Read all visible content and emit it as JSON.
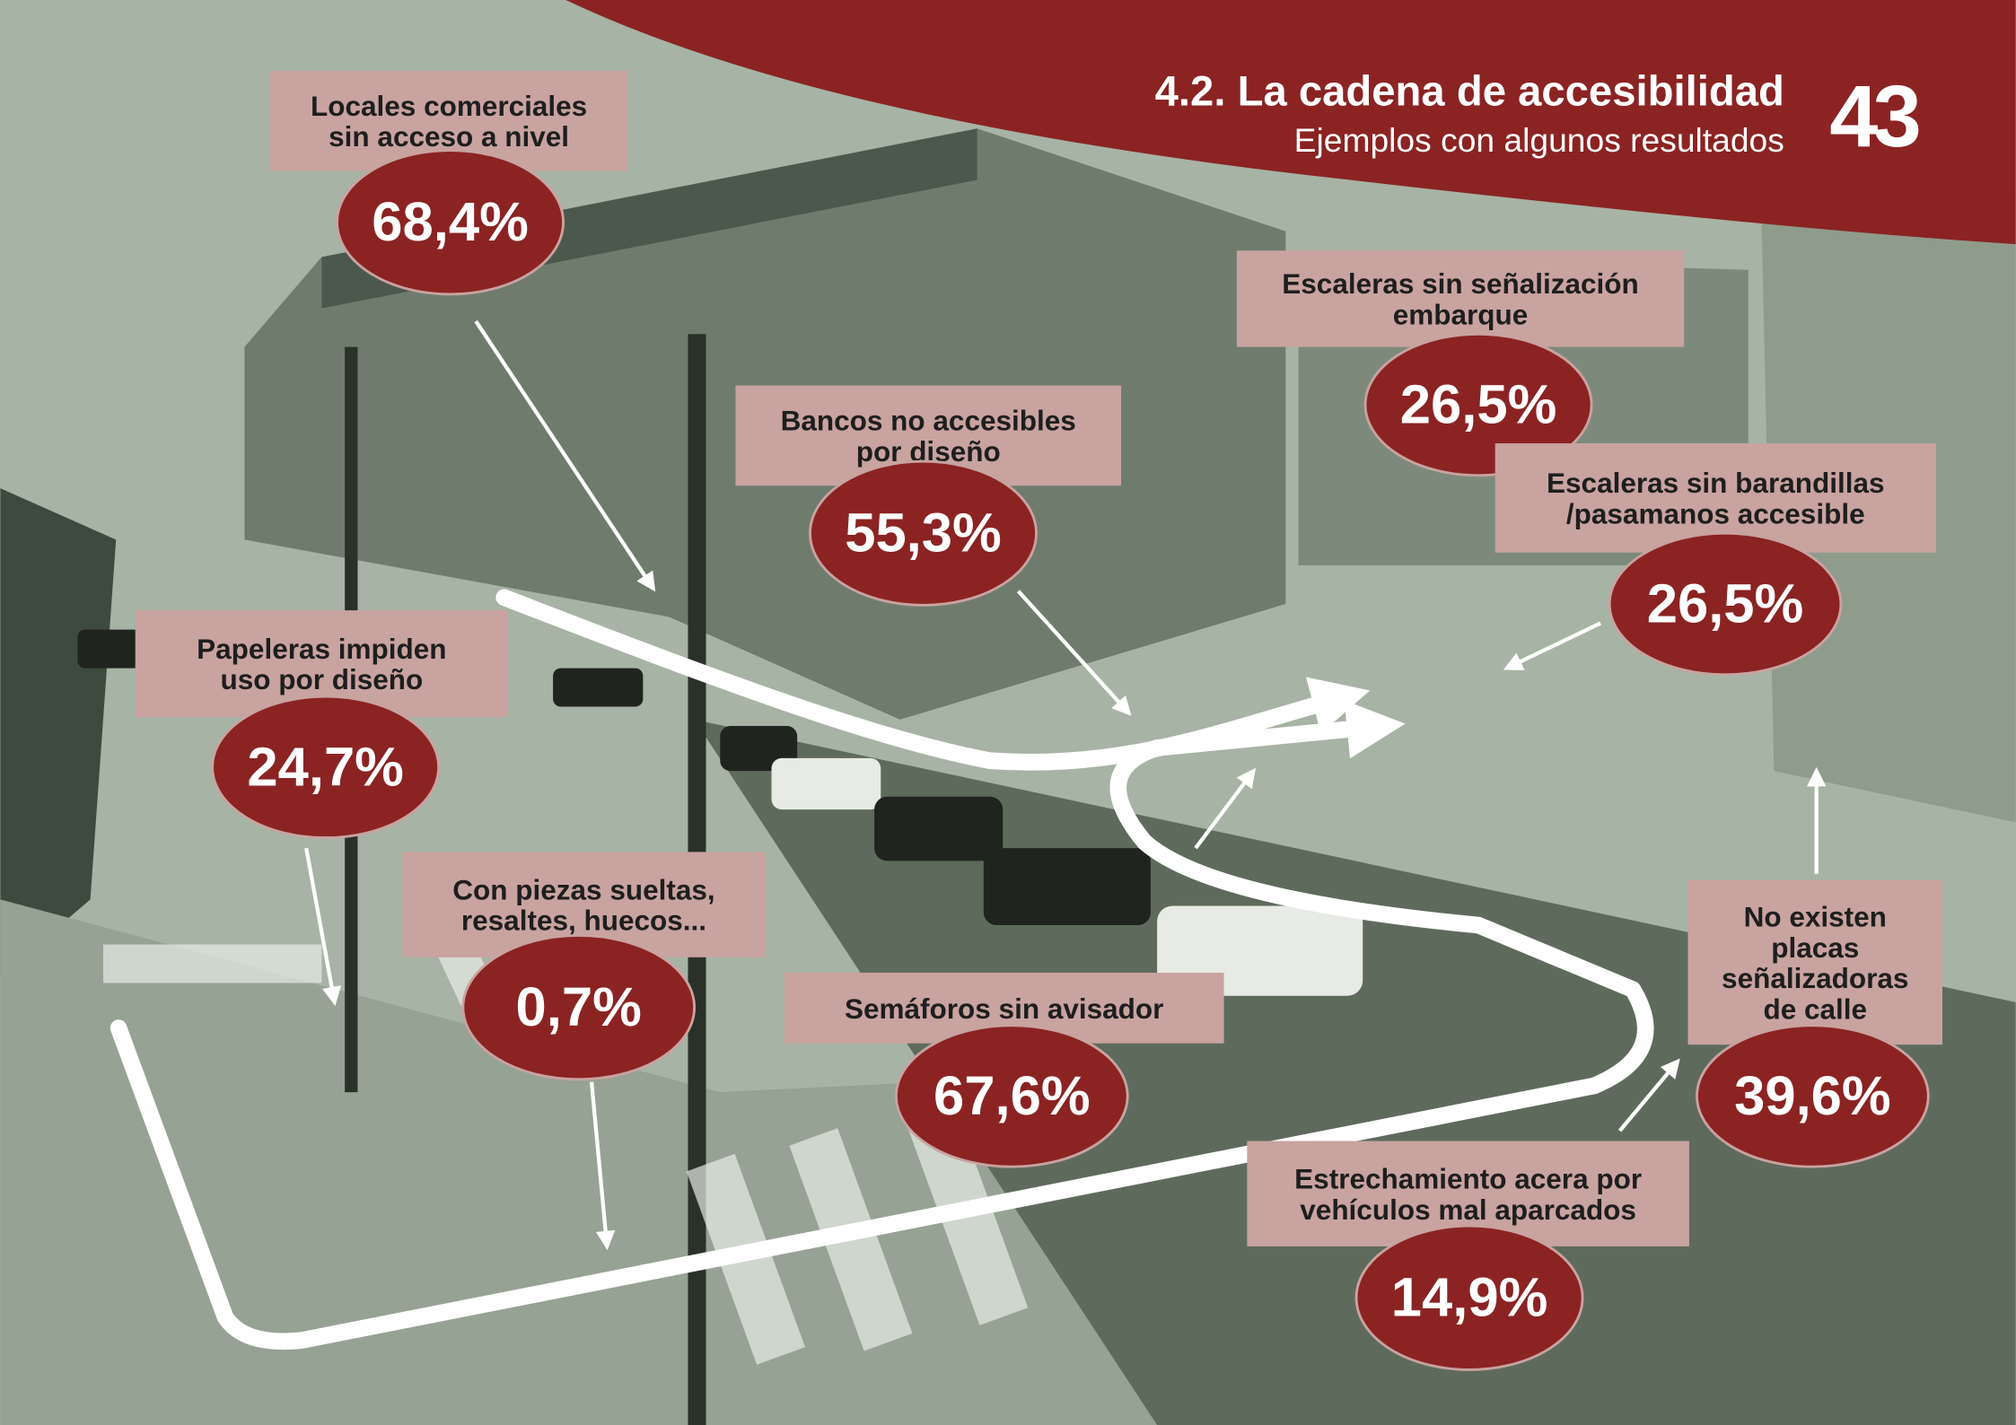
{
  "header": {
    "title": "4.2. La cadena de accesibilidad",
    "subtitle": "Ejemplos con algunos resultados",
    "page_number": "43"
  },
  "callouts": [
    {
      "label": [
        "Locales comerciales",
        "sin acceso a nivel"
      ],
      "value": "68,4%"
    },
    {
      "label": [
        "Bancos no accesibles",
        "por diseño"
      ],
      "value": "55,3%"
    },
    {
      "label": [
        "Escaleras sin señalización",
        "embarque"
      ],
      "value": "26,5%"
    },
    {
      "label": [
        "Escaleras sin barandillas",
        "/pasamanos accesible"
      ],
      "value": "26,5%"
    },
    {
      "label": [
        "Papeleras impiden",
        "uso por diseño"
      ],
      "value": "24,7%"
    },
    {
      "label": [
        "Con piezas sueltas,",
        "resaltes, huecos..."
      ],
      "value": "0,7%"
    },
    {
      "label": [
        "Semáforos sin avisador"
      ],
      "value": "67,6%"
    },
    {
      "label": [
        "No existen",
        "placas",
        "señalizadoras",
        "de calle"
      ],
      "value": "39,6%"
    },
    {
      "label": [
        "Estrechamiento acera por",
        "vehículos mal aparcados"
      ],
      "value": "14,9%"
    }
  ]
}
